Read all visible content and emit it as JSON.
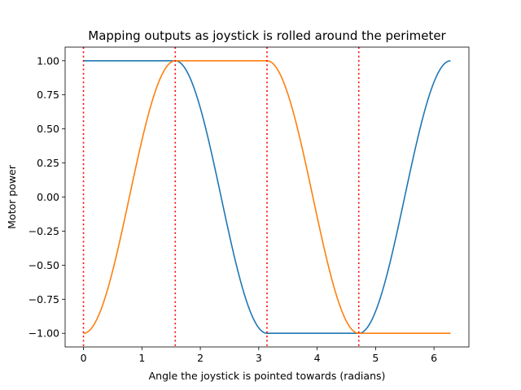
{
  "chart_data": {
    "type": "line",
    "title": "Mapping outputs as joystick is rolled around the perimeter",
    "xlabel": "Angle the joystick is pointed towards (radians)",
    "ylabel": "Motor power",
    "xlim": [
      -0.3142,
      6.5973
    ],
    "ylim": [
      -1.1,
      1.1
    ],
    "xticks": [
      0,
      1,
      2,
      3,
      4,
      5,
      6
    ],
    "xtick_labels": [
      "0",
      "1",
      "2",
      "3",
      "4",
      "5",
      "6"
    ],
    "yticks": [
      -1.0,
      -0.75,
      -0.5,
      -0.25,
      0.0,
      0.25,
      0.5,
      0.75,
      1.0
    ],
    "ytick_labels": [
      "−1.00",
      "−0.75",
      "−0.50",
      "−0.25",
      "0.00",
      "0.25",
      "0.50",
      "0.75",
      "1.00"
    ],
    "grid": false,
    "x_domain": [
      0,
      6.2832
    ],
    "series": [
      {
        "color": "#1f77b4",
        "formula": "blue",
        "description": "1 on [0, pi/2]; cos(2(x - pi/2)) on [pi/2, pi]; -1 on [pi, 3pi/2]; -cos(2(x - 3pi/2)) on [3pi/2, 2pi]"
      },
      {
        "color": "#ff7f0e",
        "formula": "orange",
        "description": "-cos(2x) on [0, pi/2]; 1 on [pi/2, pi]; cos(2(x - pi)) on [pi, 3pi/2]; -1 on [3pi/2, 2pi]"
      }
    ],
    "vlines": {
      "color": "#ff0000",
      "style": "dotted",
      "x": [
        0,
        1.5708,
        3.1416,
        4.7124
      ]
    }
  }
}
